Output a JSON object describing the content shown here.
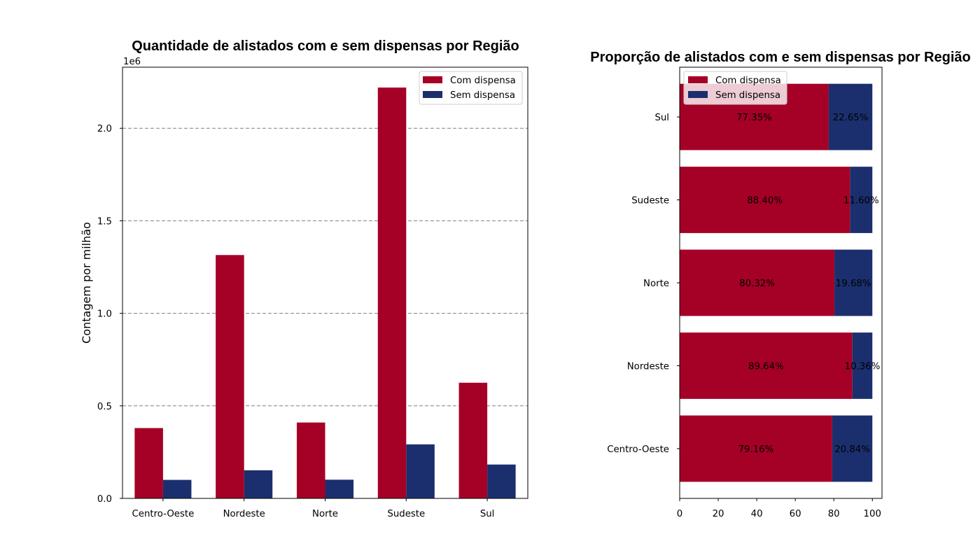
{
  "colors": {
    "com_dispensa": "#a50026",
    "sem_dispensa": "#1b2f6e",
    "grid": "#808080"
  },
  "chart_data": [
    {
      "type": "bar",
      "title": "Quantidade de alistados com e sem dispensas por Região",
      "xlabel": "",
      "ylabel": "Contagem por milhão",
      "offset_text": "1e6",
      "categories": [
        "Centro-Oeste",
        "Nordeste",
        "Norte",
        "Sudeste",
        "Sul"
      ],
      "series": [
        {
          "name": "Com dispensa",
          "values": [
            380000,
            1315000,
            410000,
            2220000,
            625000
          ]
        },
        {
          "name": "Sem dispensa",
          "values": [
            100000,
            152000,
            101000,
            292000,
            183000
          ]
        }
      ],
      "ylim": [
        0,
        2330000
      ],
      "yticks": [
        0,
        500000,
        1000000,
        1500000,
        2000000
      ],
      "ytick_labels": [
        "0.0",
        "0.5",
        "1.0",
        "1.5",
        "2.0"
      ],
      "grid": "y, dashed",
      "legend": "top-right"
    },
    {
      "type": "bar",
      "orientation": "horizontal",
      "stacked": true,
      "title": "Proporção de alistados com e sem dispensas por Região",
      "categories": [
        "Centro-Oeste",
        "Nordeste",
        "Norte",
        "Sudeste",
        "Sul"
      ],
      "series": [
        {
          "name": "Com dispensa",
          "values": [
            79.16,
            89.64,
            80.32,
            88.4,
            77.35
          ],
          "labels": [
            "79.16%",
            "89.64%",
            "80.32%",
            "88.40%",
            "77.35%"
          ]
        },
        {
          "name": "Sem dispensa",
          "values": [
            20.84,
            10.36,
            19.68,
            11.6,
            22.65
          ],
          "labels": [
            "20.84%",
            "10.36%",
            "19.68%",
            "11.60%",
            "22.65%"
          ]
        }
      ],
      "xlim": [
        0,
        105
      ],
      "xticks": [
        0,
        20,
        40,
        60,
        80,
        100
      ],
      "xtick_labels": [
        "0",
        "20",
        "40",
        "60",
        "80",
        "100"
      ],
      "legend": "top-left"
    }
  ]
}
